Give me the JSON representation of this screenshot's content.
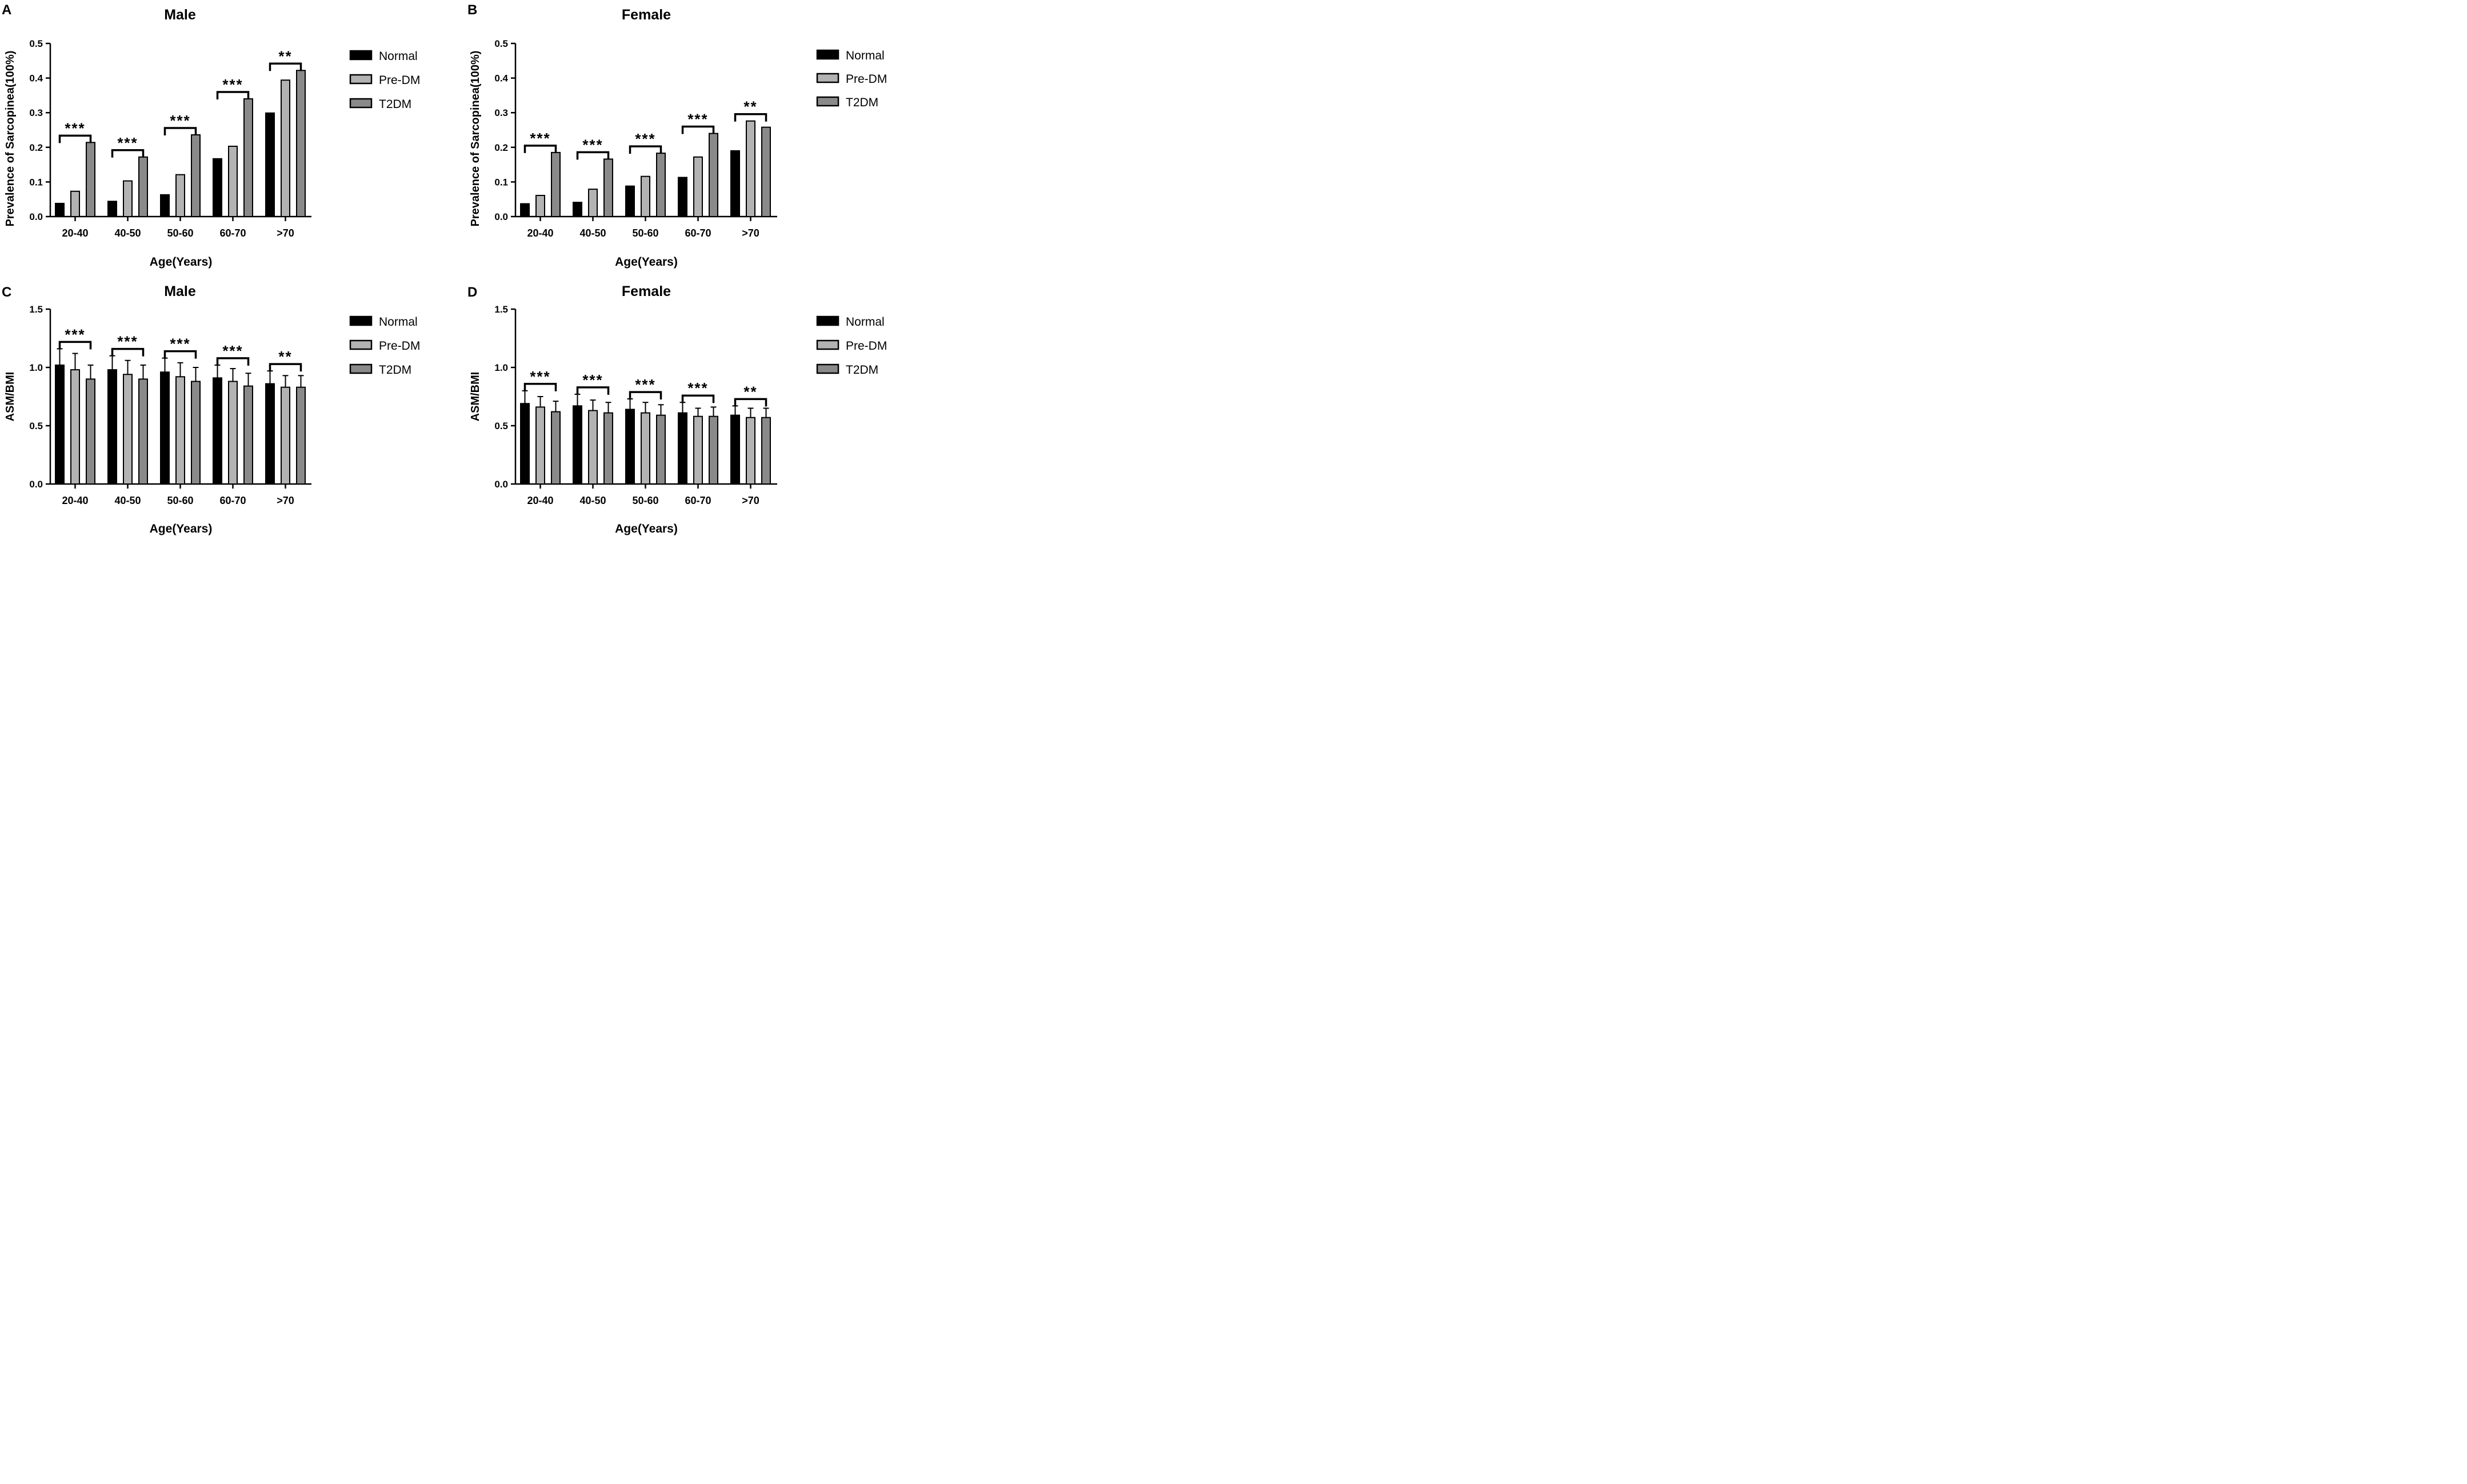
{
  "chart_data": [
    {
      "panel": "A",
      "type": "bar",
      "title": "Male",
      "xlabel": "Age(Years)",
      "ylabel": "Prevalence of Sarcopinea(100%)",
      "ylim": [
        0,
        0.5
      ],
      "yticks": [
        "0.0",
        "0.1",
        "0.2",
        "0.3",
        "0.4",
        "0.5"
      ],
      "categories": [
        "20-40",
        "40-50",
        "50-60",
        "60-70",
        ">70"
      ],
      "series": [
        {
          "name": "Normal",
          "values": [
            0.038,
            0.044,
            0.063,
            0.167,
            0.299
          ]
        },
        {
          "name": "Pre-DM",
          "values": [
            0.073,
            0.103,
            0.121,
            0.203,
            0.394
          ]
        },
        {
          "name": "T2DM",
          "values": [
            0.214,
            0.172,
            0.236,
            0.34,
            0.422
          ]
        }
      ],
      "significance": [
        "***",
        "***",
        "***",
        "***",
        "**"
      ],
      "legend": [
        "Normal",
        "Pre-DM",
        "T2DM"
      ]
    },
    {
      "panel": "B",
      "type": "bar",
      "title": "Female",
      "xlabel": "Age(Years)",
      "ylabel": "Prevalence of Sarcopinea(100%)",
      "ylim": [
        0,
        0.5
      ],
      "yticks": [
        "0.0",
        "0.1",
        "0.2",
        "0.3",
        "0.4",
        "0.5"
      ],
      "categories": [
        "20-40",
        "40-50",
        "50-60",
        "60-70",
        ">70"
      ],
      "series": [
        {
          "name": "Normal",
          "values": [
            0.037,
            0.041,
            0.088,
            0.113,
            0.19
          ]
        },
        {
          "name": "Pre-DM",
          "values": [
            0.061,
            0.079,
            0.116,
            0.172,
            0.276
          ]
        },
        {
          "name": "T2DM",
          "values": [
            0.185,
            0.166,
            0.183,
            0.24,
            0.258
          ]
        }
      ],
      "significance": [
        "***",
        "***",
        "***",
        "***",
        "**"
      ],
      "legend": [
        "Normal",
        "Pre-DM",
        "T2DM"
      ]
    },
    {
      "panel": "C",
      "type": "bar",
      "title": "Male",
      "xlabel": "Age(Years)",
      "ylabel": "ASM/BMI",
      "ylim": [
        0,
        1.5
      ],
      "yticks": [
        "0.0",
        "0.5",
        "1.0",
        "1.5"
      ],
      "categories": [
        "20-40",
        "40-50",
        "50-60",
        "60-70",
        ">70"
      ],
      "series": [
        {
          "name": "Normal",
          "values": [
            1.02,
            0.98,
            0.96,
            0.91,
            0.86
          ],
          "errors": [
            0.14,
            0.12,
            0.12,
            0.11,
            0.11
          ]
        },
        {
          "name": "Pre-DM",
          "values": [
            0.98,
            0.94,
            0.92,
            0.88,
            0.83
          ],
          "errors": [
            0.14,
            0.12,
            0.12,
            0.11,
            0.1
          ]
        },
        {
          "name": "T2DM",
          "values": [
            0.9,
            0.9,
            0.88,
            0.84,
            0.83
          ],
          "errors": [
            0.12,
            0.12,
            0.12,
            0.11,
            0.1
          ]
        }
      ],
      "significance": [
        "***",
        "***",
        "***",
        "***",
        "**"
      ],
      "legend": [
        "Normal",
        "Pre-DM",
        "T2DM"
      ]
    },
    {
      "panel": "D",
      "type": "bar",
      "title": "Female",
      "xlabel": "Age(Years)",
      "ylabel": "ASM/BMI",
      "ylim": [
        0,
        1.5
      ],
      "yticks": [
        "0.0",
        "0.5",
        "1.0",
        "1.5"
      ],
      "categories": [
        "20-40",
        "40-50",
        "50-60",
        "60-70",
        ">70"
      ],
      "series": [
        {
          "name": "Normal",
          "values": [
            0.69,
            0.67,
            0.64,
            0.61,
            0.59
          ],
          "errors": [
            0.11,
            0.1,
            0.09,
            0.09,
            0.08
          ]
        },
        {
          "name": "Pre-DM",
          "values": [
            0.66,
            0.63,
            0.61,
            0.58,
            0.57
          ],
          "errors": [
            0.09,
            0.09,
            0.09,
            0.07,
            0.08
          ]
        },
        {
          "name": "T2DM",
          "values": [
            0.62,
            0.61,
            0.59,
            0.58,
            0.57
          ],
          "errors": [
            0.09,
            0.09,
            0.09,
            0.08,
            0.08
          ]
        }
      ],
      "significance": [
        "***",
        "***",
        "***",
        "***",
        "**"
      ],
      "legend": [
        "Normal",
        "Pre-DM",
        "T2DM"
      ]
    }
  ],
  "colors": {
    "Normal": "#000000",
    "Pre-DM": "#b3b3b3",
    "T2DM": "#8a8a8a",
    "stroke": "#000000"
  }
}
